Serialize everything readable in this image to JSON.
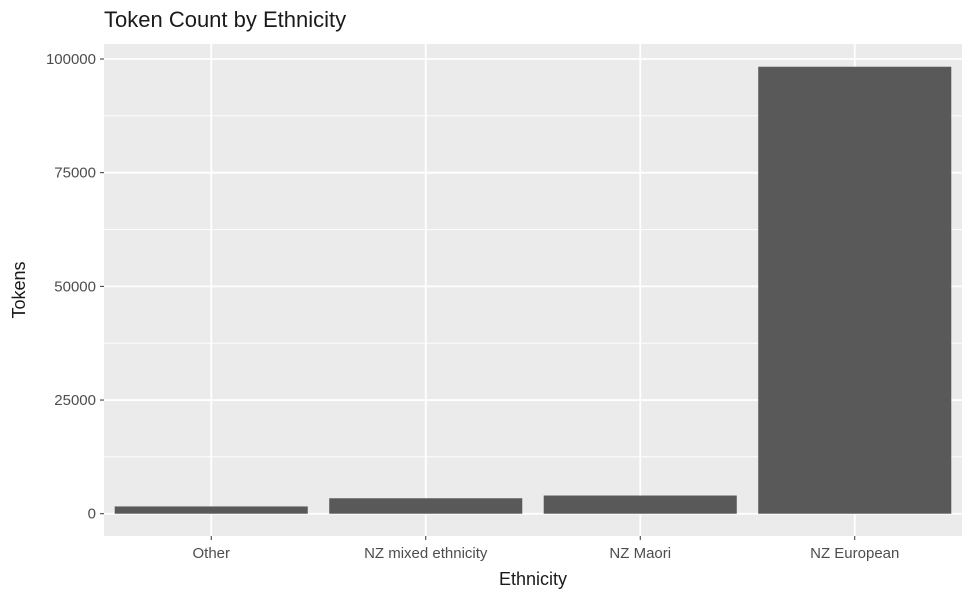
{
  "chart_data": {
    "type": "bar",
    "title": "Token Count by Ethnicity",
    "xlabel": "Ethnicity",
    "ylabel": "Tokens",
    "categories": [
      "Other",
      "NZ mixed ethnicity",
      "NZ Maori",
      "NZ European"
    ],
    "values": [
      1600,
      3400,
      4000,
      98300
    ],
    "ylim": [
      -4900,
      103300
    ],
    "yticks": [
      0,
      25000,
      50000,
      75000,
      100000
    ],
    "ytick_labels": [
      "0",
      "25000",
      "50000",
      "75000",
      "100000"
    ],
    "grid": true,
    "legend": "none",
    "colors": {
      "panel": "#ebebeb",
      "grid_major": "#ffffff",
      "bar": "#595959",
      "tick": "#333333"
    }
  }
}
